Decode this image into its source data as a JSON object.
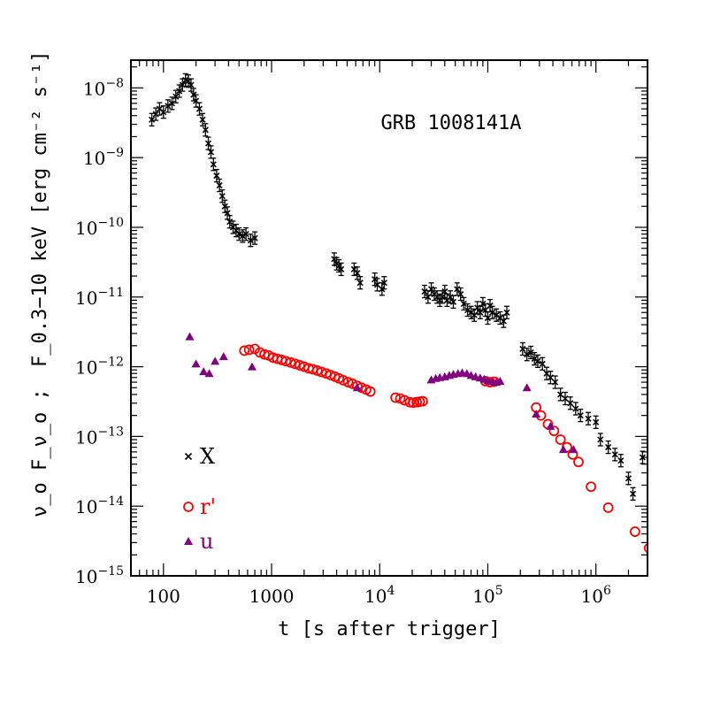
{
  "chart_data": {
    "type": "scatter",
    "title": "",
    "annotation": "GRB 1008141A",
    "xlabel": "t [s after trigger]",
    "ylabel_left": "ν_o F_ν_o ;",
    "ylabel_right": "F_0.3−10 keV [erg cm⁻² s⁻¹]",
    "x_scale": "log",
    "y_scale": "log",
    "xlim": [
      50,
      3000000
    ],
    "ylim": [
      1e-15,
      2.5e-08
    ],
    "x_tick_labels": [
      {
        "value": 100,
        "base": "100",
        "exp": ""
      },
      {
        "value": 1000,
        "base": "1000",
        "exp": ""
      },
      {
        "value": 10000,
        "base": "10",
        "exp": "4"
      },
      {
        "value": 100000,
        "base": "10",
        "exp": "5"
      },
      {
        "value": 1000000,
        "base": "10",
        "exp": "6"
      }
    ],
    "y_tick_labels": [
      {
        "value": 1e-08,
        "base": "10",
        "exp": "−8"
      },
      {
        "value": 1e-09,
        "base": "10",
        "exp": "−9"
      },
      {
        "value": 1e-10,
        "base": "10",
        "exp": "−10"
      },
      {
        "value": 1e-11,
        "base": "10",
        "exp": "−11"
      },
      {
        "value": 1e-12,
        "base": "10",
        "exp": "−12"
      },
      {
        "value": 1e-13,
        "base": "10",
        "exp": "−13"
      },
      {
        "value": 1e-14,
        "base": "10",
        "exp": "−14"
      },
      {
        "value": 1e-15,
        "base": "10",
        "exp": "−15"
      }
    ],
    "legend_position": "lower-left",
    "grid": false,
    "series": [
      {
        "name": "X",
        "marker": "cross",
        "color": "#000000",
        "x": [
          78,
          85,
          92,
          100,
          110,
          120,
          130,
          140,
          150,
          160,
          170,
          180,
          190,
          200,
          215,
          230,
          245,
          260,
          275,
          290,
          310,
          330,
          350,
          370,
          390,
          410,
          440,
          470,
          500,
          540,
          580,
          640,
          700,
          3800,
          4000,
          4200,
          4400,
          5800,
          6200,
          6600,
          9000,
          9500,
          10500,
          11000,
          26000,
          28000,
          30000,
          32000,
          34000,
          36000,
          38000,
          40000,
          42000,
          45000,
          48000,
          52000,
          56000,
          60000,
          65000,
          70000,
          75000,
          80000,
          85000,
          90000,
          95000,
          100000,
          105000,
          110000,
          120000,
          130000,
          140000,
          150000,
          210000,
          230000,
          250000,
          270000,
          290000,
          320000,
          350000,
          380000,
          420000,
          470000,
          520000,
          580000,
          650000,
          720000,
          850000,
          1000000,
          1100000,
          1300000,
          1500000,
          1700000,
          2000000,
          2200000,
          2700000
        ],
        "y": [
          3.5e-09,
          4.2e-09,
          5e-09,
          4.5e-09,
          5.5e-09,
          6e-09,
          7.5e-09,
          9e-09,
          1.1e-08,
          1.3e-08,
          1.25e-08,
          1.1e-08,
          8e-09,
          6.5e-09,
          5e-09,
          3.5e-09,
          2.5e-09,
          1.6e-09,
          1.2e-09,
          8e-10,
          5.5e-10,
          4e-10,
          2.8e-10,
          2e-10,
          1.6e-10,
          1.2e-10,
          1e-10,
          9e-11,
          8e-11,
          7.5e-11,
          8e-11,
          6.5e-11,
          7e-11,
          3.5e-11,
          3e-11,
          2.8e-11,
          2.5e-11,
          2.5e-11,
          2.2e-11,
          1.6e-11,
          1.8e-11,
          1.5e-11,
          1.3e-11,
          1.6e-11,
          1.2e-11,
          1e-11,
          1.3e-11,
          1.1e-11,
          1e-11,
          9e-12,
          1e-11,
          1.2e-11,
          9e-12,
          1e-11,
          8.5e-12,
          1.3e-11,
          1.1e-11,
          8e-12,
          6.5e-12,
          6e-12,
          5.5e-12,
          7e-12,
          6e-12,
          8e-12,
          6.5e-12,
          5e-12,
          7.5e-12,
          6e-12,
          5.5e-12,
          5e-12,
          4.5e-12,
          6e-12,
          1.8e-12,
          1.5e-12,
          1.6e-12,
          1.3e-12,
          1.2e-12,
          1.1e-12,
          8e-13,
          7e-13,
          6e-13,
          4e-13,
          3.5e-13,
          3e-13,
          2.5e-13,
          2e-13,
          1.8e-13,
          1.6e-13,
          9e-14,
          7e-14,
          5.5e-14,
          4.5e-14,
          2.5e-14,
          1.5e-14,
          5e-14
        ]
      },
      {
        "name": "r'",
        "marker": "circle",
        "color": "#ff0000",
        "x": [
          560,
          620,
          700,
          780,
          860,
          940,
          1030,
          1130,
          1240,
          1360,
          1500,
          1650,
          1820,
          2000,
          2200,
          2400,
          2650,
          2900,
          3200,
          3500,
          3850,
          4200,
          4600,
          5100,
          5600,
          6200,
          6800,
          7500,
          8200,
          14000,
          15500,
          17000,
          19000,
          20500,
          22000,
          23500,
          25000,
          95000,
          105000,
          115000,
          280000,
          310000,
          360000,
          410000,
          470000,
          540000,
          610000,
          690000,
          900000,
          1300000,
          2300000,
          3100000
        ],
        "y": [
          1.7e-12,
          1.75e-12,
          1.8e-12,
          1.6e-12,
          1.5e-12,
          1.45e-12,
          1.35e-12,
          1.3e-12,
          1.25e-12,
          1.2e-12,
          1.15e-12,
          1.1e-12,
          1.05e-12,
          1e-12,
          9.5e-13,
          9.2e-13,
          8.8e-13,
          8.4e-13,
          8e-13,
          7.6e-13,
          7.2e-13,
          6.8e-13,
          6.4e-13,
          6e-13,
          5.7e-13,
          5.3e-13,
          5e-13,
          4.7e-13,
          4.4e-13,
          3.6e-13,
          3.5e-13,
          3.3e-13,
          3.1e-13,
          3.05e-13,
          3.1e-13,
          3.15e-13,
          3.2e-13,
          6.2e-13,
          6e-13,
          6.1e-13,
          2.6e-13,
          2e-13,
          1.5e-13,
          1.2e-13,
          9e-14,
          7e-14,
          5.5e-14,
          4.3e-14,
          1.9e-14,
          9.5e-15,
          4.3e-15,
          2.5e-15
        ]
      },
      {
        "name": "u",
        "marker": "triangle",
        "color": "#800080",
        "x": [
          175,
          200,
          235,
          265,
          300,
          360,
          660,
          6200,
          30000,
          33000,
          36000,
          40000,
          44000,
          48000,
          53000,
          58000,
          64000,
          70000,
          77000,
          85000,
          93000,
          100000,
          110000,
          120000,
          130000,
          230000,
          280000,
          380000,
          500000,
          620000
        ],
        "y": [
          2.7e-12,
          1.1e-12,
          8.5e-13,
          8e-13,
          1.2e-12,
          1.4e-12,
          1e-12,
          5e-13,
          6.5e-13,
          6.8e-13,
          7e-13,
          7.2e-13,
          7.5e-13,
          7.8e-13,
          8e-13,
          8.2e-13,
          8e-13,
          7.5e-13,
          7.2e-13,
          6.9e-13,
          6.6e-13,
          6.3e-13,
          6.1e-13,
          6e-13,
          6.2e-13,
          5e-13,
          2.1e-13,
          1.4e-13,
          6.5e-14,
          6.5e-14
        ]
      }
    ]
  }
}
